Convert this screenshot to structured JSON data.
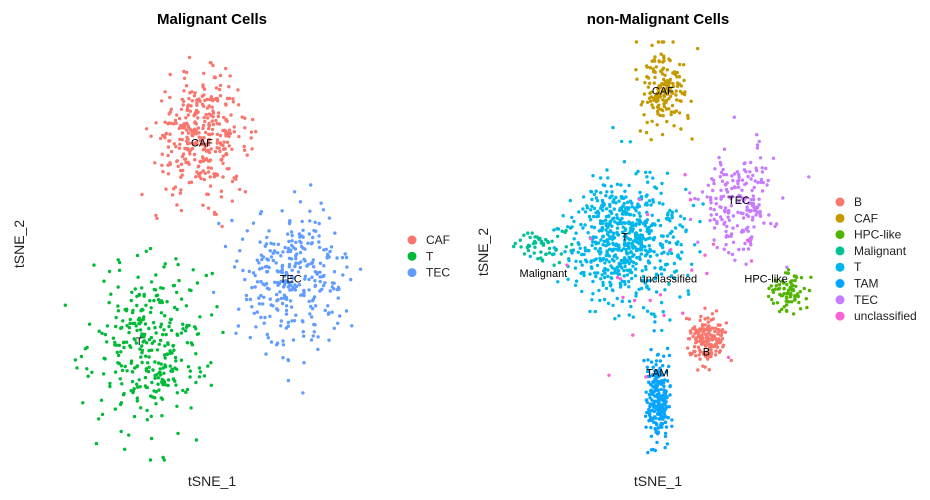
{
  "chart_data": [
    {
      "type": "scatter",
      "title": "Malignant Cells",
      "xlabel": "tSNE_1",
      "ylabel": "tSNE_2",
      "grid": false,
      "legend_position": "right",
      "legend": [
        {
          "name": "CAF",
          "color": "#F8766D"
        },
        {
          "name": "T",
          "color": "#00BA38"
        },
        {
          "name": "TEC",
          "color": "#619CFF"
        }
      ],
      "cluster_labels": [
        {
          "text": "CAF",
          "x": 0.0,
          "y": 20.0
        },
        {
          "text": "T",
          "x": -12.0,
          "y": -18.0
        },
        {
          "text": "TEC",
          "x": 17.0,
          "y": -6.0
        }
      ],
      "clusters": [
        {
          "name": "CAF",
          "cx": 0.0,
          "cy": 22.0,
          "sx": 8.0,
          "sy": 10.0,
          "n": 360
        },
        {
          "name": "T",
          "cx": -10.0,
          "cy": -18.0,
          "sx": 10.0,
          "sy": 15.0,
          "n": 330
        },
        {
          "name": "TEC",
          "cx": 18.0,
          "cy": -5.0,
          "sx": 9.0,
          "sy": 12.0,
          "n": 320
        }
      ]
    },
    {
      "type": "scatter",
      "title": "non-Malignant Cells",
      "xlabel": "tSNE_1",
      "ylabel": "tSNE_2",
      "grid": false,
      "legend_position": "right",
      "legend": [
        {
          "name": "B",
          "color": "#F8766D"
        },
        {
          "name": "CAF",
          "color": "#C49A00"
        },
        {
          "name": "HPC-like",
          "color": "#53B400"
        },
        {
          "name": "Malignant",
          "color": "#00C094"
        },
        {
          "name": "T",
          "color": "#00B6EB"
        },
        {
          "name": "TAM",
          "color": "#06A4FF"
        },
        {
          "name": "TEC",
          "color": "#C77CFF"
        },
        {
          "name": "unclassified",
          "color": "#FB61D7"
        }
      ],
      "cluster_labels": [
        {
          "text": "CAF",
          "x": 2.0,
          "y": 30.0
        },
        {
          "text": "TEC",
          "x": 16.0,
          "y": 9.0
        },
        {
          "text": "Malignant",
          "x": -20.0,
          "y": -5.0
        },
        {
          "text": "T",
          "x": -5.0,
          "y": 2.0
        },
        {
          "text": "unclassified",
          "x": 3.0,
          "y": -6.0
        },
        {
          "text": "HPC-like",
          "x": 21.0,
          "y": -6.0
        },
        {
          "text": "TAM",
          "x": 1.0,
          "y": -24.0
        },
        {
          "text": "B",
          "x": 10.0,
          "y": -20.0
        }
      ],
      "clusters": [
        {
          "name": "CAF",
          "cx": 2.0,
          "cy": 31.0,
          "sx": 4.0,
          "sy": 7.0,
          "n": 170
        },
        {
          "name": "TEC",
          "cx": 16.0,
          "cy": 10.0,
          "sx": 6.0,
          "sy": 9.0,
          "n": 200
        },
        {
          "name": "Malignant",
          "cx": -20.0,
          "cy": 1.0,
          "sx": 5.0,
          "sy": 3.0,
          "n": 60
        },
        {
          "name": "T",
          "cx": -5.0,
          "cy": 2.0,
          "sx": 9.0,
          "sy": 11.0,
          "n": 650
        },
        {
          "name": "HPC-like",
          "cx": 25.0,
          "cy": -8.0,
          "sx": 3.0,
          "sy": 4.0,
          "n": 80
        },
        {
          "name": "TAM",
          "cx": 1.0,
          "cy": -28.0,
          "sx": 2.0,
          "sy": 8.0,
          "n": 240
        },
        {
          "name": "B",
          "cx": 10.0,
          "cy": -17.0,
          "sx": 3.0,
          "sy": 4.0,
          "n": 170
        },
        {
          "name": "unclassified",
          "cx": 0.0,
          "cy": -4.0,
          "sx": 14.0,
          "sy": 14.0,
          "n": 25
        }
      ]
    }
  ]
}
